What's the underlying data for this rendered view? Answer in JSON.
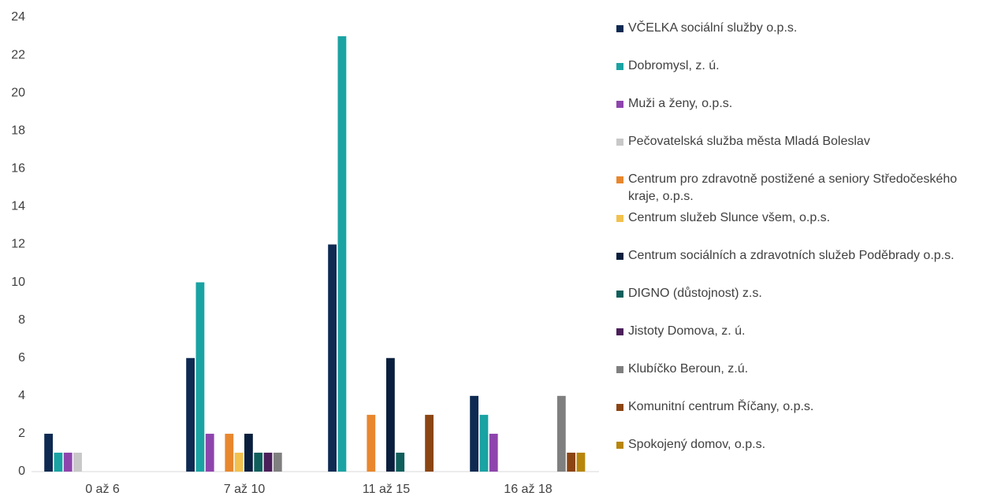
{
  "chart_data": {
    "type": "bar",
    "categories": [
      "0 až 6",
      "7 až 10",
      "11 až 15",
      "16 až 18"
    ],
    "series": [
      {
        "name": "VČELKA sociální služby o.p.s.",
        "color": "#0e2a52",
        "values": [
          2,
          6,
          12,
          4
        ]
      },
      {
        "name": "Dobromysl, z. ú.",
        "color": "#1aa3a3",
        "values": [
          1,
          10,
          23,
          3
        ]
      },
      {
        "name": "Muži a ženy, o.p.s.",
        "color": "#8e44ad",
        "values": [
          1,
          2,
          0,
          2
        ]
      },
      {
        "name": "Pečovatelská služba města Mladá Boleslav",
        "color": "#c8c8c8",
        "values": [
          1,
          0,
          0,
          0
        ]
      },
      {
        "name": "Centrum pro zdravotně postižené a seniory Středočeského kraje, o.p.s.",
        "color": "#e8872e",
        "values": [
          0,
          2,
          3,
          0
        ]
      },
      {
        "name": "Centrum služeb Slunce všem, o.p.s.",
        "color": "#f2c14e",
        "values": [
          0,
          1,
          0,
          0
        ]
      },
      {
        "name": "Centrum sociálních a zdravotních služeb Poděbrady o.p.s.",
        "color": "#0a1f3d",
        "values": [
          0,
          2,
          6,
          0
        ]
      },
      {
        "name": "DIGNO (důstojnost) z.s.",
        "color": "#0f5f5c",
        "values": [
          0,
          1,
          1,
          0
        ]
      },
      {
        "name": "Jistoty Domova, z. ú.",
        "color": "#4b1f5a",
        "values": [
          0,
          1,
          0,
          0
        ]
      },
      {
        "name": "Klubíčko Beroun, z.ú.",
        "color": "#7f7f7f",
        "values": [
          0,
          1,
          0,
          4
        ]
      },
      {
        "name": "Komunitní centrum Říčany, o.p.s.",
        "color": "#8b4513",
        "values": [
          0,
          0,
          3,
          1
        ]
      },
      {
        "name": "Spokojený domov, o.p.s.",
        "color": "#b8860b",
        "values": [
          0,
          0,
          0,
          1
        ]
      }
    ],
    "ylim": [
      0,
      24
    ],
    "yticks": [
      0,
      2,
      4,
      6,
      8,
      10,
      12,
      14,
      16,
      18,
      20,
      22,
      24
    ],
    "grid": false,
    "legend": "right"
  }
}
